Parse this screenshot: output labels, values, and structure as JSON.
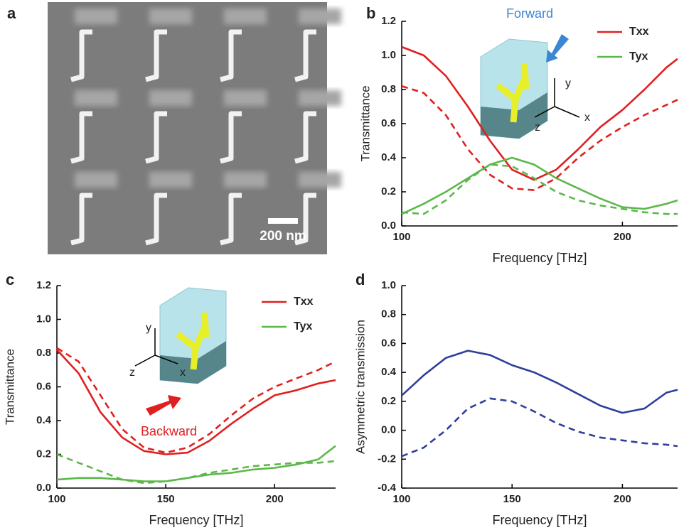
{
  "image_panel": {
    "panel_label": "a",
    "scale_bar": "200 nm"
  },
  "chart_data": [
    {
      "type": "line",
      "panel_label": "b",
      "xlabel": "Frequency [THz]",
      "ylabel": "Transmittance",
      "annotations": [
        "Forward",
        "y",
        "x",
        "z"
      ],
      "x": [
        100,
        110,
        120,
        130,
        140,
        150,
        160,
        170,
        180,
        190,
        200,
        210,
        220,
        225
      ],
      "xlim": [
        100,
        225
      ],
      "xticks": [
        100,
        200
      ],
      "ylim": [
        0,
        1.2
      ],
      "yticks": [
        {
          "value": 0,
          "label": "0.0"
        },
        0.2,
        0.4,
        0.6,
        0.8,
        {
          "value": 1,
          "label": "1.0"
        },
        1.2
      ],
      "series": [
        {
          "name": "Txx",
          "color": "#e02020",
          "values": [
            1.05,
            1.0,
            0.88,
            0.7,
            0.5,
            0.33,
            0.27,
            0.33,
            0.45,
            0.58,
            0.68,
            0.8,
            0.93,
            0.98
          ]
        },
        {
          "name": "Tyx",
          "color": "#5cb84a",
          "values": [
            0.07,
            0.13,
            0.2,
            0.28,
            0.36,
            0.4,
            0.36,
            0.28,
            0.22,
            0.16,
            0.11,
            0.1,
            0.13,
            0.15
          ]
        },
        {
          "color": "#e02020",
          "dash": true,
          "values": [
            0.82,
            0.78,
            0.65,
            0.45,
            0.3,
            0.22,
            0.21,
            0.28,
            0.4,
            0.5,
            0.58,
            0.65,
            0.71,
            0.74
          ]
        },
        {
          "color": "#5cb84a",
          "dash": true,
          "values": [
            0.08,
            0.07,
            0.15,
            0.27,
            0.36,
            0.35,
            0.28,
            0.2,
            0.15,
            0.12,
            0.1,
            0.08,
            0.07,
            0.07
          ]
        }
      ]
    },
    {
      "type": "line",
      "panel_label": "c",
      "xlabel": "Frequency [THz]",
      "ylabel": "Transmittance",
      "annotations": [
        "Backward",
        "y",
        "x",
        "z"
      ],
      "x": [
        100,
        110,
        120,
        130,
        140,
        150,
        160,
        170,
        180,
        190,
        200,
        210,
        220,
        228
      ],
      "xlim": [
        100,
        228
      ],
      "xticks": [
        100,
        150,
        200
      ],
      "ylim": [
        0,
        1.2
      ],
      "yticks": [
        {
          "value": 0,
          "label": "0.0"
        },
        0.2,
        0.4,
        0.6,
        0.8,
        {
          "value": 1,
          "label": "1.0"
        },
        1.2
      ],
      "series": [
        {
          "name": "Txx",
          "color": "#e02020",
          "values": [
            0.82,
            0.68,
            0.45,
            0.3,
            0.22,
            0.2,
            0.21,
            0.28,
            0.38,
            0.47,
            0.55,
            0.58,
            0.62,
            0.64
          ]
        },
        {
          "name": "Tyx",
          "color": "#5cb84a",
          "values": [
            0.05,
            0.06,
            0.06,
            0.05,
            0.04,
            0.04,
            0.06,
            0.08,
            0.09,
            0.11,
            0.12,
            0.14,
            0.17,
            0.25
          ]
        },
        {
          "color": "#e02020",
          "dash": true,
          "values": [
            0.83,
            0.75,
            0.55,
            0.35,
            0.24,
            0.21,
            0.24,
            0.32,
            0.43,
            0.53,
            0.6,
            0.65,
            0.7,
            0.75
          ]
        },
        {
          "color": "#5cb84a",
          "dash": true,
          "values": [
            0.2,
            0.15,
            0.1,
            0.05,
            0.03,
            0.04,
            0.06,
            0.09,
            0.11,
            0.13,
            0.14,
            0.15,
            0.15,
            0.16
          ]
        }
      ]
    },
    {
      "type": "line",
      "panel_label": "d",
      "xlabel": "Frequency [THz]",
      "ylabel": "Asymmetric transmission",
      "x": [
        100,
        110,
        120,
        130,
        140,
        150,
        160,
        170,
        180,
        190,
        200,
        210,
        220,
        225
      ],
      "xlim": [
        100,
        225
      ],
      "xticks": [
        100,
        150,
        200
      ],
      "ylim": [
        -0.4,
        1
      ],
      "yticks": [
        -0.4,
        -0.2,
        {
          "value": 0,
          "label": "0.0"
        },
        0.2,
        0.4,
        0.6,
        0.8,
        {
          "value": 1,
          "label": "1.0"
        }
      ],
      "series": [
        {
          "color": "#2e3f9a",
          "values": [
            0.24,
            0.38,
            0.5,
            0.55,
            0.52,
            0.45,
            0.4,
            0.33,
            0.25,
            0.17,
            0.12,
            0.15,
            0.26,
            0.28
          ]
        },
        {
          "color": "#2e3f9a",
          "dash": true,
          "values": [
            -0.18,
            -0.12,
            0.0,
            0.15,
            0.22,
            0.2,
            0.13,
            0.05,
            -0.01,
            -0.05,
            -0.07,
            -0.09,
            -0.1,
            -0.11
          ]
        }
      ]
    }
  ]
}
